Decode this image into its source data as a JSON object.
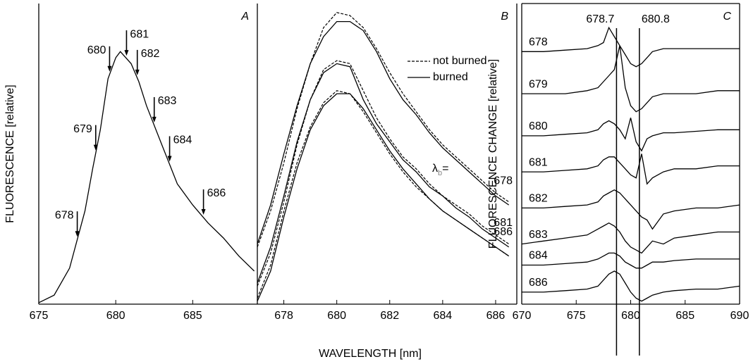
{
  "chart_data": [
    {
      "type": "line",
      "panel_label": "A",
      "ylabel": "FLUORESCENCE [relative]",
      "xlim": [
        675,
        689.2
      ],
      "xticks": [
        675,
        680,
        685
      ],
      "ylim": [
        0,
        1
      ],
      "x": [
        675,
        676,
        677,
        678,
        678.5,
        679,
        679.5,
        680,
        680.3,
        681,
        681.5,
        682,
        683,
        684,
        685,
        686,
        687,
        688,
        689
      ],
      "series": [
        {
          "color": "#000000",
          "style": "solid",
          "values": [
            0.005,
            0.03,
            0.12,
            0.31,
            0.45,
            0.58,
            0.75,
            0.82,
            0.84,
            0.8,
            0.74,
            0.66,
            0.53,
            0.4,
            0.33,
            0.27,
            0.22,
            0.16,
            0.11
          ]
        }
      ],
      "annotations": [
        {
          "text": "678",
          "x": 677.5
        },
        {
          "text": "679",
          "x": 678.7
        },
        {
          "text": "680",
          "x": 679.6
        },
        {
          "text": "681",
          "x": 680.7
        },
        {
          "text": "682",
          "x": 681.4
        },
        {
          "text": "683",
          "x": 682.5
        },
        {
          "text": "684",
          "x": 683.5
        },
        {
          "text": "686",
          "x": 685.7
        }
      ]
    },
    {
      "type": "line",
      "panel_label": "B",
      "xlabel": "WAVELENGTH [nm]",
      "xlim": [
        677,
        686.8
      ],
      "xticks": [
        678,
        680,
        682,
        684,
        686
      ],
      "ylim": [
        0,
        1
      ],
      "lambda_label": {
        "symbol": "λ",
        "subscript": "b",
        "suffix": "="
      },
      "legend": [
        {
          "name": "not burned",
          "style": "dashed"
        },
        {
          "name": "burned",
          "style": "solid"
        }
      ],
      "x": [
        677,
        677.5,
        678,
        678.5,
        679,
        679.5,
        680,
        680.5,
        681,
        681.5,
        682,
        682.5,
        683,
        683.5,
        684,
        684.5,
        685,
        685.5,
        686,
        686.5
      ],
      "series": [
        {
          "label": "678",
          "color": "#000000",
          "style": "solid",
          "values": [
            0.2,
            0.33,
            0.5,
            0.66,
            0.8,
            0.89,
            0.94,
            0.94,
            0.91,
            0.84,
            0.75,
            0.68,
            0.63,
            0.57,
            0.52,
            0.48,
            0.44,
            0.4,
            0.36,
            0.33
          ]
        },
        {
          "color": "#000000",
          "style": "dashed",
          "values": [
            0.19,
            0.31,
            0.47,
            0.65,
            0.8,
            0.92,
            0.97,
            0.96,
            0.92,
            0.85,
            0.77,
            0.7,
            0.64,
            0.58,
            0.53,
            0.49,
            0.45,
            0.41,
            0.37,
            0.34
          ]
        },
        {
          "label": "681",
          "color": "#000000",
          "style": "solid",
          "values": [
            0.07,
            0.19,
            0.36,
            0.54,
            0.68,
            0.77,
            0.8,
            0.79,
            0.68,
            0.6,
            0.54,
            0.48,
            0.44,
            0.39,
            0.36,
            0.32,
            0.29,
            0.25,
            0.22,
            0.19
          ]
        },
        {
          "color": "#000000",
          "style": "dashed",
          "values": [
            0.06,
            0.17,
            0.34,
            0.53,
            0.68,
            0.78,
            0.81,
            0.8,
            0.71,
            0.62,
            0.55,
            0.49,
            0.45,
            0.4,
            0.36,
            0.33,
            0.3,
            0.26,
            0.23,
            0.2
          ]
        },
        {
          "label": "686",
          "color": "#000000",
          "style": "solid",
          "values": [
            0.01,
            0.11,
            0.29,
            0.45,
            0.58,
            0.66,
            0.7,
            0.7,
            0.65,
            0.58,
            0.51,
            0.45,
            0.4,
            0.35,
            0.31,
            0.28,
            0.25,
            0.22,
            0.19,
            0.16
          ]
        },
        {
          "color": "#000000",
          "style": "dashed",
          "values": [
            0.02,
            0.13,
            0.31,
            0.47,
            0.59,
            0.67,
            0.71,
            0.7,
            0.64,
            0.57,
            0.5,
            0.44,
            0.39,
            0.35,
            0.31,
            0.28,
            0.25,
            0.22,
            0.19,
            0.16
          ]
        }
      ]
    },
    {
      "type": "line",
      "panel_label": "C",
      "ylabel": "FLUORESCENCE CHANGE [relative]",
      "xlim": [
        670,
        690
      ],
      "xticks": [
        670,
        675,
        680,
        685,
        690
      ],
      "ylim": [
        0,
        1
      ],
      "vlines": [
        678.7,
        680.8
      ],
      "x": [
        670,
        672,
        674,
        676,
        677,
        677.5,
        678,
        678.5,
        679,
        679.5,
        680,
        680.5,
        681,
        681.5,
        682,
        683,
        684,
        686,
        688,
        690
      ],
      "series": [
        {
          "label": "678",
          "color": "#000000",
          "style": "solid",
          "values": [
            0.84,
            0.84,
            0.845,
            0.85,
            0.86,
            0.87,
            0.92,
            0.89,
            0.86,
            0.83,
            0.8,
            0.79,
            0.8,
            0.82,
            0.84,
            0.85,
            0.85,
            0.85,
            0.85,
            0.85
          ]
        },
        {
          "label": "679",
          "color": "#000000",
          "style": "solid",
          "values": [
            0.7,
            0.7,
            0.7,
            0.71,
            0.72,
            0.74,
            0.76,
            0.78,
            0.86,
            0.72,
            0.66,
            0.64,
            0.65,
            0.67,
            0.69,
            0.7,
            0.7,
            0.7,
            0.71,
            0.71
          ]
        },
        {
          "label": "680",
          "color": "#000000",
          "style": "solid",
          "values": [
            0.56,
            0.56,
            0.565,
            0.57,
            0.58,
            0.6,
            0.61,
            0.6,
            0.58,
            0.55,
            0.62,
            0.54,
            0.51,
            0.55,
            0.56,
            0.57,
            0.57,
            0.575,
            0.58,
            0.58
          ]
        },
        {
          "label": "681",
          "color": "#000000",
          "style": "solid",
          "values": [
            0.44,
            0.44,
            0.445,
            0.45,
            0.46,
            0.48,
            0.49,
            0.49,
            0.47,
            0.45,
            0.43,
            0.42,
            0.5,
            0.4,
            0.42,
            0.44,
            0.45,
            0.45,
            0.46,
            0.46
          ]
        },
        {
          "label": "682",
          "color": "#000000",
          "style": "solid",
          "values": [
            0.32,
            0.32,
            0.325,
            0.33,
            0.34,
            0.36,
            0.37,
            0.38,
            0.37,
            0.35,
            0.33,
            0.31,
            0.29,
            0.28,
            0.25,
            0.3,
            0.31,
            0.32,
            0.32,
            0.33
          ]
        },
        {
          "label": "683",
          "color": "#000000",
          "style": "solid",
          "values": [
            0.2,
            0.21,
            0.22,
            0.23,
            0.25,
            0.26,
            0.27,
            0.26,
            0.24,
            0.21,
            0.19,
            0.18,
            0.17,
            0.19,
            0.21,
            0.2,
            0.22,
            0.23,
            0.24,
            0.24
          ]
        },
        {
          "label": "684",
          "color": "#000000",
          "style": "solid",
          "values": [
            0.13,
            0.13,
            0.135,
            0.14,
            0.15,
            0.16,
            0.17,
            0.17,
            0.16,
            0.14,
            0.13,
            0.12,
            0.12,
            0.13,
            0.14,
            0.14,
            0.145,
            0.15,
            0.15,
            0.15
          ]
        },
        {
          "label": "686",
          "color": "#000000",
          "style": "solid",
          "values": [
            0.04,
            0.04,
            0.045,
            0.05,
            0.06,
            0.08,
            0.1,
            0.11,
            0.1,
            0.07,
            0.04,
            0.02,
            0.01,
            0.02,
            0.03,
            0.04,
            0.045,
            0.05,
            0.05,
            0.06
          ]
        }
      ]
    }
  ]
}
